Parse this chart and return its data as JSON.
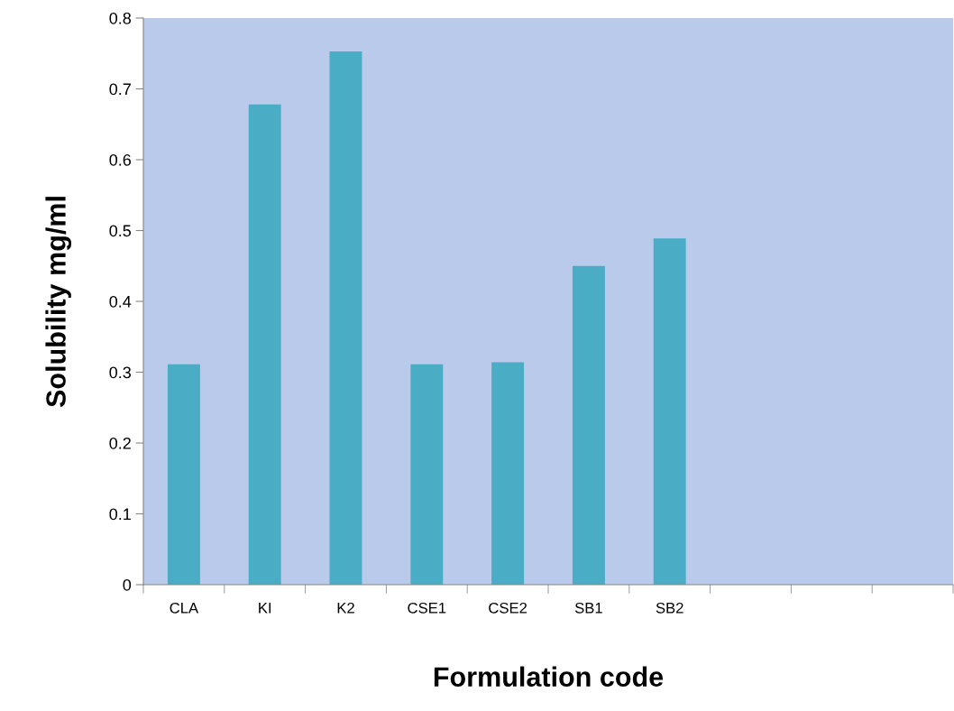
{
  "chart_data": {
    "type": "bar",
    "xlabel": "Formulation code",
    "ylabel": "Solubility mg/ml",
    "categories": [
      "CLA",
      "KI",
      "K2",
      "CSE1",
      "CSE2",
      "SB1",
      "SB2",
      null,
      null,
      null
    ],
    "values": [
      0.311,
      0.678,
      0.753,
      0.311,
      0.314,
      0.45,
      0.489,
      null,
      null,
      null
    ],
    "color": "#4bacc6",
    "ylim": [
      0,
      0.8
    ],
    "yticks": [
      {
        "value": 0,
        "label": "0"
      },
      0.1,
      0.2,
      0.3,
      0.4,
      0.5,
      0.6,
      0.7,
      0.8
    ],
    "grid": false,
    "legend": false
  }
}
